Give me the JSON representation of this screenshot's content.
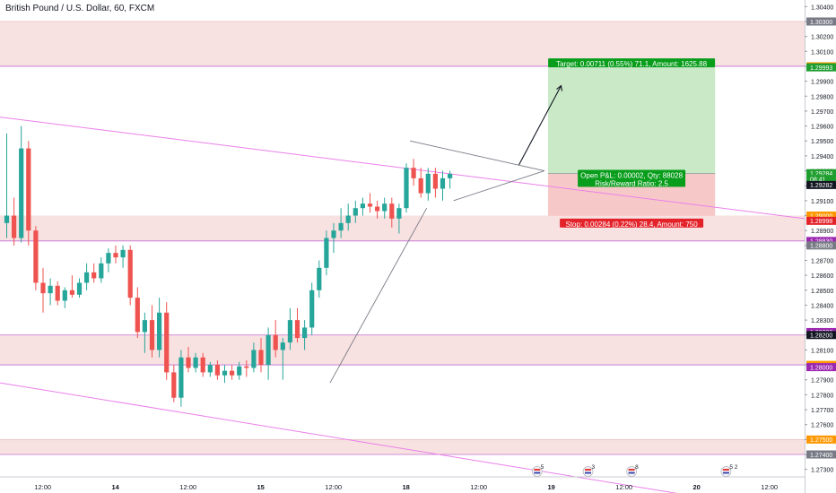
{
  "header": {
    "symbol_title": "British Pound / U.S. Dollar, 60, FXCM"
  },
  "colors": {
    "up": "#26a69a",
    "down": "#ef5350",
    "zone_fill": "#f8e1e1",
    "zone_line": "#c26dd2",
    "trendline": "#ea80ea",
    "target_fill": "#c9e9c7",
    "stop_fill": "#f7c8c8",
    "target_badge": "#089d1b",
    "stop_badge": "#e3222a",
    "orange_badge": "#ff9800",
    "purple_badge": "#9c27b0",
    "gray_badge": "#787b86",
    "green_badge": "#1e9e2e",
    "dark_badge": "#131722"
  },
  "chart_data": {
    "type": "candlestick",
    "title": "British Pound / U.S. Dollar, 60, FXCM",
    "ylim": [
      1.2725,
      1.3042
    ],
    "y_ticks": [
      "1.30400",
      "1.30300",
      "1.30200",
      "1.30100",
      "1.30000",
      "1.29900",
      "1.29800",
      "1.29700",
      "1.29600",
      "1.29500",
      "1.29400",
      "1.29300",
      "1.29200",
      "1.29100",
      "1.29000",
      "1.28900",
      "1.28800",
      "1.28700",
      "1.28600",
      "1.28500",
      "1.28400",
      "1.28300",
      "1.28200",
      "1.28100",
      "1.28000",
      "1.27900",
      "1.27800",
      "1.27700",
      "1.27600",
      "1.27500",
      "1.27400",
      "1.27300"
    ],
    "x_ticks": [
      {
        "label": "12:00",
        "bar": 2
      },
      {
        "label": "14",
        "bar": 12
      },
      {
        "label": "12:00",
        "bar": 22
      },
      {
        "label": "15",
        "bar": 32
      },
      {
        "label": "12:00",
        "bar": 42
      },
      {
        "label": "18",
        "bar": 52
      },
      {
        "label": "12:00",
        "bar": 62
      },
      {
        "label": "19",
        "bar": 72
      },
      {
        "label": "12:00",
        "bar": 82
      },
      {
        "label": "20",
        "bar": 92
      },
      {
        "label": "12:00",
        "bar": 102
      }
    ],
    "candles": [
      [
        1.2895,
        1.2955,
        1.2885,
        1.29
      ],
      [
        1.29,
        1.2912,
        1.288,
        1.2885
      ],
      [
        1.2885,
        1.296,
        1.2882,
        1.2945
      ],
      [
        1.2945,
        1.295,
        1.288,
        1.289
      ],
      [
        1.289,
        1.2893,
        1.285,
        1.2855
      ],
      [
        1.2855,
        1.2865,
        1.2835,
        1.2848
      ],
      [
        1.2848,
        1.2858,
        1.284,
        1.2853
      ],
      [
        1.2853,
        1.2856,
        1.284,
        1.2843
      ],
      [
        1.2843,
        1.2852,
        1.2838,
        1.285
      ],
      [
        1.285,
        1.286,
        1.2845,
        1.2847
      ],
      [
        1.2847,
        1.2858,
        1.2845,
        1.2855
      ],
      [
        1.2855,
        1.2868,
        1.285,
        1.2862
      ],
      [
        1.2862,
        1.2868,
        1.2855,
        1.2858
      ],
      [
        1.2858,
        1.2872,
        1.2855,
        1.2868
      ],
      [
        1.2868,
        1.2878,
        1.2862,
        1.2875
      ],
      [
        1.2875,
        1.288,
        1.2868,
        1.2872
      ],
      [
        1.2872,
        1.288,
        1.2865,
        1.2877
      ],
      [
        1.2877,
        1.288,
        1.284,
        1.2845
      ],
      [
        1.2845,
        1.2852,
        1.2818,
        1.2822
      ],
      [
        1.2822,
        1.2835,
        1.2808,
        1.283
      ],
      [
        1.283,
        1.284,
        1.2805,
        1.281
      ],
      [
        1.281,
        1.2845,
        1.2805,
        1.2835
      ],
      [
        1.2835,
        1.2842,
        1.279,
        1.2795
      ],
      [
        1.2795,
        1.28,
        1.2775,
        1.2778
      ],
      [
        1.2778,
        1.281,
        1.2772,
        1.2805
      ],
      [
        1.2805,
        1.2812,
        1.2795,
        1.2798
      ],
      [
        1.2798,
        1.2808,
        1.2795,
        1.2805
      ],
      [
        1.2805,
        1.2808,
        1.2792,
        1.2795
      ],
      [
        1.2795,
        1.2802,
        1.2792,
        1.28
      ],
      [
        1.28,
        1.2803,
        1.279,
        1.2793
      ],
      [
        1.2793,
        1.28,
        1.2788,
        1.2796
      ],
      [
        1.2796,
        1.28,
        1.279,
        1.2793
      ],
      [
        1.2793,
        1.2802,
        1.279,
        1.2799
      ],
      [
        1.2799,
        1.2803,
        1.2792,
        1.2798
      ],
      [
        1.2798,
        1.2815,
        1.2795,
        1.281
      ],
      [
        1.281,
        1.2818,
        1.2795,
        1.28
      ],
      [
        1.28,
        1.2825,
        1.279,
        1.282
      ],
      [
        1.282,
        1.283,
        1.2805,
        1.281
      ],
      [
        1.281,
        1.2818,
        1.279,
        1.2815
      ],
      [
        1.2815,
        1.2838,
        1.281,
        1.283
      ],
      [
        1.283,
        1.2838,
        1.2815,
        1.2818
      ],
      [
        1.2818,
        1.283,
        1.281,
        1.2825
      ],
      [
        1.2825,
        1.2855,
        1.282,
        1.285
      ],
      [
        1.285,
        1.287,
        1.2845,
        1.2865
      ],
      [
        1.2865,
        1.289,
        1.286,
        1.2885
      ],
      [
        1.2885,
        1.2895,
        1.2875,
        1.289
      ],
      [
        1.289,
        1.2905,
        1.2885,
        1.2895
      ],
      [
        1.2895,
        1.2908,
        1.289,
        1.29
      ],
      [
        1.29,
        1.291,
        1.2895,
        1.2905
      ],
      [
        1.2905,
        1.2912,
        1.29,
        1.2908
      ],
      [
        1.2908,
        1.2915,
        1.2902,
        1.2906
      ],
      [
        1.2906,
        1.291,
        1.2898,
        1.2903
      ],
      [
        1.2903,
        1.2912,
        1.2898,
        1.2908
      ],
      [
        1.2908,
        1.2912,
        1.2892,
        1.2898
      ],
      [
        1.2898,
        1.2908,
        1.2888,
        1.2905
      ],
      [
        1.2905,
        1.2935,
        1.2902,
        1.2932
      ],
      [
        1.2932,
        1.2938,
        1.292,
        1.2925
      ],
      [
        1.2925,
        1.2932,
        1.2912,
        1.2915
      ],
      [
        1.2915,
        1.2932,
        1.291,
        1.2928
      ],
      [
        1.2928,
        1.2932,
        1.2912,
        1.2918
      ],
      [
        1.2918,
        1.293,
        1.291,
        1.2925
      ],
      [
        1.2925,
        1.293,
        1.2918,
        1.2928
      ]
    ],
    "horizontal_lines": [
      1.3,
      1.2883,
      1.282,
      1.28,
      1.274
    ],
    "support_resistance_zones": [
      {
        "from": 1.3,
        "to": 1.303
      },
      {
        "from": 1.2883,
        "to": 1.29
      },
      {
        "from": 1.28,
        "to": 1.282
      },
      {
        "from": 1.274,
        "to": 1.275
      }
    ],
    "position": {
      "entry": 1.29282,
      "target": 1.29993,
      "stop": 1.28998,
      "target_label": "Target: 0.00711 (0.55%) 71.1, Amount: 1625.88",
      "stop_label": "Stop: 0.00284 (0.22%) 28.4, Amount: 750",
      "open_pnl_label": "Open P&L: 0.00002, Qty: 88028",
      "rr_label": "Risk/Reward Ratio: 2.5"
    },
    "price_badges": [
      {
        "text": "1.30300",
        "kind": "gray",
        "price": 1.303
      },
      {
        "text": "1.30000",
        "kind": "orange",
        "price": 1.3
      },
      {
        "text": "1.29993",
        "kind": "green",
        "price": 1.29993
      },
      {
        "text": "1.29284",
        "kind": "green",
        "price": 1.29284
      },
      {
        "text": "08:41",
        "kind": "green",
        "price": 1.29245
      },
      {
        "text": "1.29282",
        "kind": "dark",
        "price": 1.29205
      },
      {
        "text": "1.29000",
        "kind": "orange",
        "price": 1.29
      },
      {
        "text": "1.28998",
        "kind": "red",
        "price": 1.28965
      },
      {
        "text": "1.28830",
        "kind": "purple",
        "price": 1.2883
      },
      {
        "text": "1.28800",
        "kind": "gray",
        "price": 1.288
      },
      {
        "text": "1.28220",
        "kind": "purple",
        "price": 1.2822
      },
      {
        "text": "1.28200",
        "kind": "dark",
        "price": 1.282
      },
      {
        "text": "1.28000",
        "kind": "orange",
        "price": 1.28
      },
      {
        "text": "1.28000",
        "kind": "purple",
        "price": 1.27985
      },
      {
        "text": "1.27500",
        "kind": "orange",
        "price": 1.275
      },
      {
        "text": "1.27400",
        "kind": "gray",
        "price": 1.274
      }
    ],
    "event_flags": [
      {
        "bar": 73,
        "label": "5"
      },
      {
        "bar": 80,
        "label": "3"
      },
      {
        "bar": 86,
        "label": "8"
      },
      {
        "bar": 99,
        "label": "5 2"
      }
    ]
  }
}
